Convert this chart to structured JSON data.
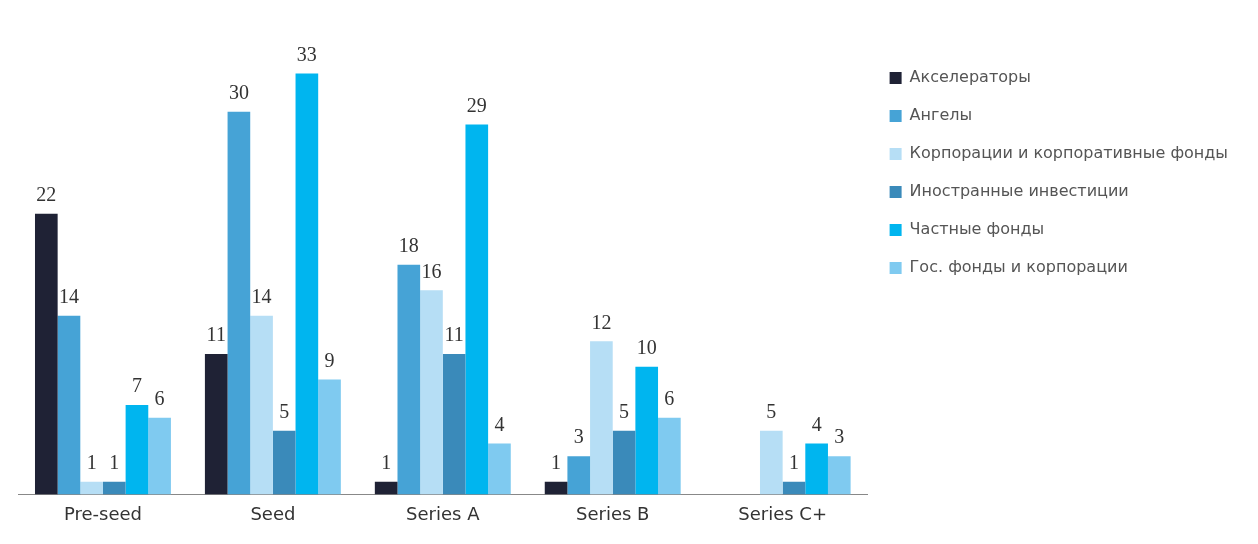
{
  "chart_data": {
    "type": "bar",
    "categories": [
      "Pre-seed",
      "Seed",
      "Series A",
      "Series B",
      "Series C+"
    ],
    "series": [
      {
        "name": "Акселераторы",
        "color": "#1f2235",
        "values": [
          22,
          11,
          1,
          1,
          null
        ]
      },
      {
        "name": "Ангелы",
        "color": "#46a3d6",
        "values": [
          14,
          30,
          18,
          3,
          null
        ]
      },
      {
        "name": "Корпорации и корпоративные фонды",
        "color": "#b6def5",
        "values": [
          1,
          14,
          16,
          12,
          5
        ]
      },
      {
        "name": "Иностранные инвестиции",
        "color": "#3a8aba",
        "values": [
          1,
          5,
          11,
          5,
          1
        ]
      },
      {
        "name": "Частные фонды",
        "color": "#00b5ef",
        "values": [
          7,
          33,
          29,
          10,
          4
        ]
      },
      {
        "name": "Гос. фонды и корпорации",
        "color": "#7fcaf0",
        "values": [
          6,
          9,
          4,
          6,
          3
        ]
      }
    ],
    "data_labels": true,
    "grid": false,
    "legend": "right"
  }
}
